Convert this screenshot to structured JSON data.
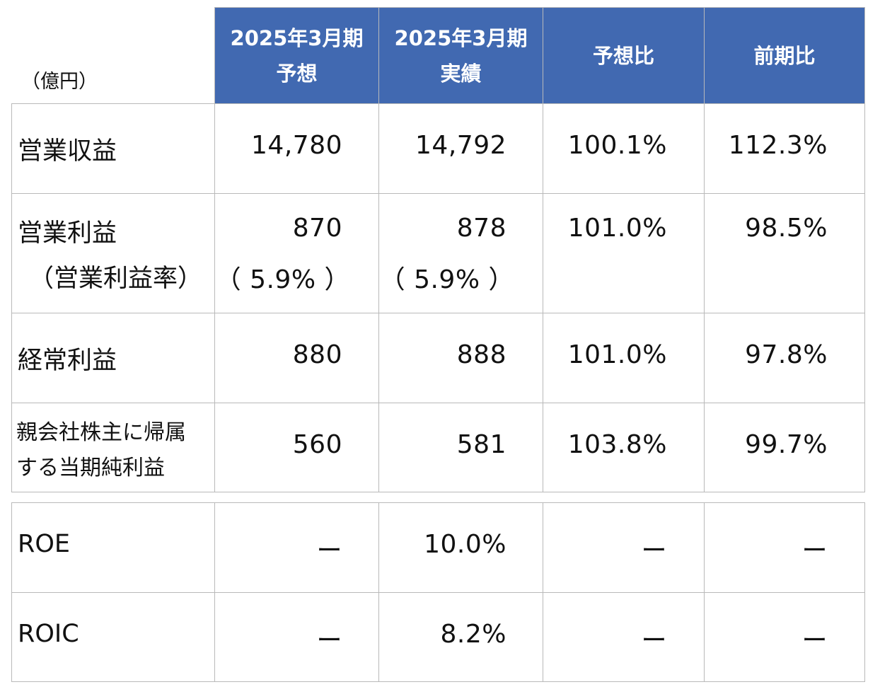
{
  "unit_label": "（億円）",
  "headers": [
    {
      "line1": "2025年3月期",
      "line2": "予想"
    },
    {
      "line1": "2025年3月期",
      "line2": "実績"
    },
    {
      "line1": "予想比",
      "line2": ""
    },
    {
      "line1": "前期比",
      "line2": ""
    }
  ],
  "rows": [
    {
      "label": "営業収益",
      "forecast": "14,780",
      "actual": "14,792",
      "vs_forecast": "100.1%",
      "yoy": "112.3%"
    },
    {
      "label": "営業利益",
      "sublabel": "（営業利益率）",
      "forecast": "870",
      "forecast_sub": "（ 5.9% ）",
      "actual": "878",
      "actual_sub": "（ 5.9% ）",
      "vs_forecast": "101.0%",
      "yoy": "98.5%"
    },
    {
      "label": "経常利益",
      "forecast": "880",
      "actual": "888",
      "vs_forecast": "101.0%",
      "yoy": "97.8%"
    },
    {
      "label": "親会社株主に帰属",
      "label2": "する当期純利益",
      "forecast": "560",
      "actual": "581",
      "vs_forecast": "103.8%",
      "yoy": "99.7%"
    }
  ],
  "ratios": [
    {
      "label": "ROE",
      "forecast": "ー",
      "actual": "10.0%",
      "vs_forecast": "ー",
      "yoy": "ー"
    },
    {
      "label": "ROIC",
      "forecast": "ー",
      "actual": "8.2%",
      "vs_forecast": "ー",
      "yoy": "ー"
    }
  ],
  "colors": {
    "header_bg": "#4169b1",
    "header_text": "#ffffff",
    "border": "#b9b9b9"
  }
}
